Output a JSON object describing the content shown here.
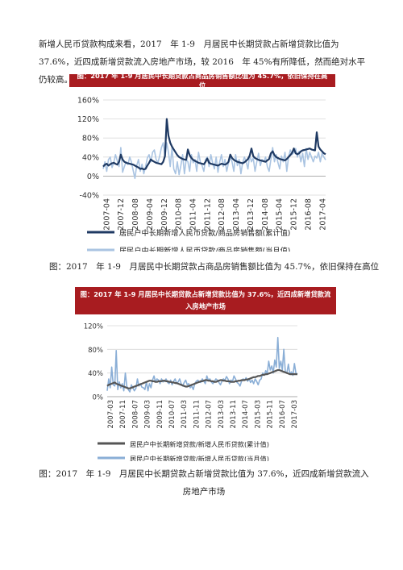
{
  "intro_text": "新增人民币贷款构成来看，2017　年 1-9　月居民中长期贷款占新增贷款比值为 37.6%，近四成新增贷款流入房地产市场，较 2016　年 45%有所降低，然而绝对水平仍较高。",
  "chart_data": [
    {
      "type": "line",
      "title": "图：2017 年 1-9 月居民中长期贷款占商品房销售额比值为 45.7%，依旧保持在高位",
      "caption": "图：2017　年 1-9　月居民中长期贷款占商品房销售额比值为 45.7%，依旧保持在高位",
      "x_ticks": [
        "2007-04",
        "2007-12",
        "2008-08",
        "2009-04",
        "2009-12",
        "2010-08",
        "2011-04",
        "2011-12",
        "2012-08",
        "2013-04",
        "2013-12",
        "2014-08",
        "2015-04",
        "2015-12",
        "2016-08",
        "2017-04"
      ],
      "ylim": [
        -40,
        160
      ],
      "y_ticks": [
        "160%",
        "120%",
        "80%",
        "40%",
        "0%",
        "-40%"
      ],
      "grid": true,
      "legend_position": "bottom",
      "series": [
        {
          "name": "居民户中长期新增人民币贷款/商品房销售额(累计值)",
          "color": "#1f3a63",
          "width": 2.2,
          "dash": "",
          "x": [
            0,
            1,
            2,
            3,
            4,
            5,
            6,
            7,
            8,
            9,
            10,
            11,
            12,
            13,
            14,
            15,
            16,
            17,
            18,
            19,
            20,
            21,
            22,
            23,
            24,
            25,
            26,
            27,
            28,
            29,
            30,
            31,
            32,
            33,
            34,
            35,
            36,
            37,
            38,
            39,
            40,
            41,
            42,
            43,
            44,
            45,
            46,
            47,
            48,
            49,
            50,
            51,
            52,
            53,
            54,
            55,
            56,
            57,
            58,
            59,
            60,
            61,
            62,
            63,
            64,
            65,
            66,
            67,
            68,
            69,
            70,
            71,
            72,
            73,
            74,
            75,
            76,
            77,
            78,
            79,
            80,
            81,
            82,
            83,
            84,
            85,
            86,
            87,
            88,
            89,
            90,
            91,
            92,
            93,
            94,
            95,
            96,
            97,
            98,
            99,
            100,
            101,
            102,
            103,
            104,
            105,
            106,
            107,
            108,
            109,
            110,
            111,
            112,
            113,
            114,
            115,
            116,
            117,
            118,
            119,
            120,
            121,
            122,
            123,
            124,
            125,
            126
          ],
          "y": [
            20,
            24,
            26,
            22,
            25,
            27,
            28,
            26,
            24,
            30,
            45,
            35,
            30,
            28,
            27,
            26,
            25,
            24,
            22,
            20,
            18,
            15,
            16,
            14,
            15,
            22,
            28,
            35,
            32,
            30,
            28,
            27,
            26,
            25,
            30,
            42,
            120,
            85,
            70,
            62,
            56,
            50,
            44,
            40,
            38,
            36,
            35,
            34,
            56,
            44,
            38,
            34,
            32,
            30,
            28,
            27,
            26,
            25,
            30,
            37,
            28,
            26,
            25,
            24,
            23,
            22,
            24,
            26,
            25,
            24,
            26,
            30,
            45,
            38,
            34,
            32,
            30,
            29,
            28,
            27,
            29,
            32,
            36,
            43,
            58,
            42,
            38,
            36,
            34,
            33,
            32,
            31,
            30,
            33,
            36,
            48,
            52,
            44,
            40,
            38,
            36,
            35,
            34,
            33,
            36,
            40,
            44,
            49,
            58,
            48,
            46,
            48,
            52,
            54,
            55,
            56,
            57,
            58,
            56,
            55,
            54,
            92,
            62,
            56,
            52,
            48,
            46
          ]
        },
        {
          "name": "居民户中长期新增人民币贷款/商品房销售额(当月值)",
          "color": "#aac4e2",
          "width": 1.6,
          "dash": "",
          "x": [
            0,
            1,
            2,
            3,
            4,
            5,
            6,
            7,
            8,
            9,
            10,
            11,
            12,
            13,
            14,
            15,
            16,
            17,
            18,
            19,
            20,
            21,
            22,
            23,
            24,
            25,
            26,
            27,
            28,
            29,
            30,
            31,
            32,
            33,
            34,
            35,
            36,
            37,
            38,
            39,
            40,
            41,
            42,
            43,
            44,
            45,
            46,
            47,
            48,
            49,
            50,
            51,
            52,
            53,
            54,
            55,
            56,
            57,
            58,
            59,
            60,
            61,
            62,
            63,
            64,
            65,
            66,
            67,
            68,
            69,
            70,
            71,
            72,
            73,
            74,
            75,
            76,
            77,
            78,
            79,
            80,
            81,
            82,
            83,
            84,
            85,
            86,
            87,
            88,
            89,
            90,
            91,
            92,
            93,
            94,
            95,
            96,
            97,
            98,
            99,
            100,
            101,
            102,
            103,
            104,
            105,
            106,
            107,
            108,
            109,
            110,
            111,
            112,
            113,
            114,
            115,
            116,
            117,
            118,
            119,
            120,
            121,
            122,
            123,
            124,
            125,
            126
          ],
          "y": [
            15,
            30,
            10,
            35,
            40,
            18,
            28,
            45,
            32,
            20,
            60,
            8,
            20,
            30,
            24,
            40,
            30,
            12,
            -5,
            22,
            35,
            10,
            25,
            5,
            20,
            38,
            45,
            30,
            50,
            55,
            35,
            28,
            42,
            60,
            70,
            40,
            70,
            50,
            20,
            60,
            15,
            5,
            30,
            3,
            22,
            45,
            5,
            35,
            30,
            10,
            45,
            28,
            35,
            10,
            50,
            30,
            22,
            10,
            35,
            40,
            20,
            45,
            28,
            15,
            40,
            8,
            30,
            45,
            20,
            35,
            10,
            28,
            40,
            30,
            10,
            45,
            22,
            35,
            5,
            28,
            40,
            30,
            15,
            45,
            30,
            38,
            10,
            30,
            48,
            22,
            35,
            30,
            40,
            20,
            10,
            35,
            60,
            30,
            45,
            28,
            15,
            42,
            30,
            50,
            10,
            40,
            55,
            45,
            50,
            58,
            40,
            52,
            30,
            48,
            20,
            58,
            35,
            50,
            40,
            30,
            42,
            38,
            50,
            30,
            48,
            40,
            34
          ]
        }
      ]
    },
    {
      "type": "line",
      "title": "图：2017 年 1-9 月居民中长期贷款占新增贷款比值为 37.6%，近四成新增贷款流入房地产市场",
      "caption": "图：2017　年 1-9　月居民中长期贷款占新增贷款比值为 37.6%，近四成新增贷款流入房地产市场",
      "x_ticks": [
        "2007-03",
        "2007-11",
        "2008-07",
        "2009-03",
        "2009-11",
        "2010-07",
        "2011-03",
        "2011-11",
        "2012-07",
        "2013-03",
        "2013-11",
        "2014-07",
        "2015-03",
        "2015-11",
        "2016-07",
        "2017-03"
      ],
      "ylim": [
        0,
        120
      ],
      "y_ticks": [
        "120%",
        "80%",
        "40%",
        "0%"
      ],
      "grid": true,
      "legend_position": "bottom",
      "series": [
        {
          "name": "居民户中长期新增贷款/新增人民币贷款(累计值)",
          "color": "#555555",
          "width": 2.2,
          "dash": "",
          "x": [
            0,
            1,
            2,
            3,
            4,
            5,
            6,
            7,
            8,
            9,
            10,
            11,
            12,
            13,
            14,
            15,
            16,
            17,
            18,
            19,
            20,
            21,
            22,
            23,
            24,
            25,
            26,
            27,
            28,
            29,
            30,
            31,
            32,
            33,
            34,
            35,
            36,
            37,
            38,
            39,
            40,
            41,
            42,
            43,
            44,
            45,
            46,
            47,
            48,
            49,
            50,
            51,
            52,
            53,
            54,
            55,
            56,
            57,
            58,
            59,
            60,
            61,
            62,
            63,
            64,
            65,
            66,
            67,
            68,
            69,
            70,
            71,
            72,
            73,
            74,
            75,
            76,
            77,
            78,
            79,
            80,
            81,
            82,
            83,
            84,
            85,
            86,
            87,
            88,
            89,
            90,
            91,
            92,
            93,
            94,
            95,
            96,
            97,
            98,
            99,
            100,
            101,
            102,
            103,
            104,
            105,
            106,
            107,
            108,
            109,
            110,
            111,
            112,
            113,
            114,
            115,
            116,
            117,
            118,
            119,
            120,
            121,
            122,
            123,
            124,
            125,
            126
          ],
          "y": [
            18,
            20,
            21,
            22,
            23,
            24,
            22,
            21,
            20,
            19,
            18,
            17,
            16,
            15,
            14,
            14,
            15,
            16,
            17,
            18,
            19,
            20,
            21,
            22,
            23,
            24,
            25,
            26,
            27,
            27,
            26,
            26,
            25,
            25,
            26,
            26,
            26,
            27,
            27,
            26,
            26,
            25,
            25,
            24,
            24,
            23,
            23,
            22,
            21,
            20,
            19,
            18,
            17,
            17,
            18,
            19,
            20,
            21,
            22,
            23,
            24,
            25,
            26,
            26,
            27,
            28,
            28,
            27,
            27,
            26,
            26,
            25,
            25,
            26,
            27,
            28,
            28,
            27,
            27,
            26,
            26,
            26,
            25,
            25,
            25,
            26,
            26,
            27,
            27,
            28,
            28,
            28,
            29,
            29,
            30,
            31,
            32,
            33,
            33,
            34,
            35,
            35,
            36,
            37,
            37,
            38,
            38,
            39,
            40,
            41,
            42,
            43,
            44,
            45,
            45,
            44,
            43,
            42,
            41,
            40,
            39,
            38,
            38,
            38,
            38,
            38,
            38
          ]
        },
        {
          "name": "居民户中长期新增贷款/新增人民币贷款(当月值)",
          "color": "#8aaed6",
          "width": 1.6,
          "dash": "",
          "x": [
            0,
            1,
            2,
            3,
            4,
            5,
            6,
            7,
            8,
            9,
            10,
            11,
            12,
            13,
            14,
            15,
            16,
            17,
            18,
            19,
            20,
            21,
            22,
            23,
            24,
            25,
            26,
            27,
            28,
            29,
            30,
            31,
            32,
            33,
            34,
            35,
            36,
            37,
            38,
            39,
            40,
            41,
            42,
            43,
            44,
            45,
            46,
            47,
            48,
            49,
            50,
            51,
            52,
            53,
            54,
            55,
            56,
            57,
            58,
            59,
            60,
            61,
            62,
            63,
            64,
            65,
            66,
            67,
            68,
            69,
            70,
            71,
            72,
            73,
            74,
            75,
            76,
            77,
            78,
            79,
            80,
            81,
            82,
            83,
            84,
            85,
            86,
            87,
            88,
            89,
            90,
            91,
            92,
            93,
            94,
            95,
            96,
            97,
            98,
            99,
            100,
            101,
            102,
            103,
            104,
            105,
            106,
            107,
            108,
            109,
            110,
            111,
            112,
            113,
            114,
            115,
            116,
            117,
            118,
            119,
            120,
            121,
            122,
            123,
            124,
            125,
            126
          ],
          "y": [
            10,
            30,
            15,
            50,
            20,
            18,
            78,
            12,
            25,
            15,
            22,
            10,
            40,
            18,
            12,
            8,
            20,
            15,
            10,
            14,
            30,
            18,
            22,
            16,
            15,
            12,
            25,
            10,
            22,
            15,
            28,
            35,
            25,
            30,
            28,
            22,
            30,
            25,
            26,
            30,
            24,
            22,
            28,
            20,
            26,
            30,
            22,
            25,
            30,
            22,
            18,
            24,
            28,
            20,
            22,
            15,
            18,
            12,
            22,
            26,
            28,
            25,
            24,
            30,
            26,
            22,
            35,
            28,
            30,
            25,
            22,
            26,
            30,
            28,
            24,
            20,
            26,
            30,
            28,
            34,
            30,
            22,
            28,
            26,
            35,
            30,
            24,
            22,
            18,
            26,
            30,
            28,
            32,
            26,
            30,
            24,
            28,
            22,
            30,
            26,
            20,
            28,
            30,
            40,
            36,
            44,
            38,
            60,
            45,
            52,
            40,
            62,
            50,
            100,
            48,
            60,
            45,
            80,
            42,
            40,
            55,
            38,
            42,
            36,
            56,
            40,
            38
          ]
        }
      ]
    }
  ]
}
